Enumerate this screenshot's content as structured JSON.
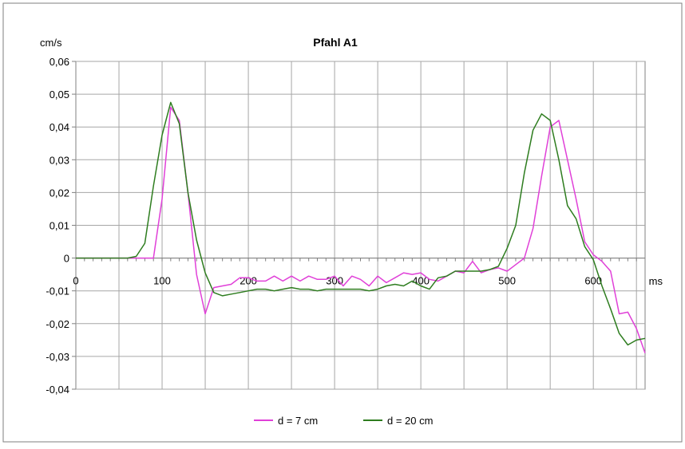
{
  "chart_data": {
    "type": "line",
    "title": "Pfahl A1",
    "ylabel": "cm/s",
    "xlabel": "ms",
    "xlim": [
      0,
      660
    ],
    "ylim": [
      -0.04,
      0.06
    ],
    "x_ticks": [
      0,
      100,
      200,
      300,
      400,
      500,
      600
    ],
    "x_tick_labels": [
      "0",
      "100",
      "200",
      "300",
      "400",
      "500",
      "600"
    ],
    "x_grid_step": 50,
    "y_ticks": [
      -0.04,
      -0.03,
      -0.02,
      -0.01,
      0,
      0.01,
      0.02,
      0.03,
      0.04,
      0.05,
      0.06
    ],
    "y_tick_labels": [
      "-0,04",
      "-0,03",
      "-0,02",
      "-0,01",
      "0",
      "0,01",
      "0,02",
      "0,03",
      "0,04",
      "0,05",
      "0,06"
    ],
    "grid": true,
    "legend_position": "bottom",
    "series": [
      {
        "name": "d = 7 cm",
        "color": "#e040d8",
        "x": [
          0,
          10,
          20,
          30,
          40,
          50,
          60,
          70,
          80,
          90,
          100,
          110,
          120,
          130,
          140,
          150,
          160,
          170,
          180,
          190,
          200,
          210,
          220,
          230,
          240,
          250,
          260,
          270,
          280,
          290,
          300,
          310,
          320,
          330,
          340,
          350,
          360,
          370,
          380,
          390,
          400,
          410,
          420,
          430,
          440,
          450,
          460,
          470,
          480,
          490,
          500,
          510,
          520,
          530,
          540,
          550,
          560,
          570,
          580,
          590,
          600,
          610,
          620,
          630,
          640,
          650,
          660
        ],
        "y": [
          0,
          0,
          0,
          0,
          0,
          0,
          0,
          0,
          0,
          0,
          0.018,
          0.046,
          0.042,
          0.02,
          -0.005,
          -0.017,
          -0.009,
          -0.0085,
          -0.008,
          -0.006,
          -0.006,
          -0.007,
          -0.007,
          -0.0055,
          -0.007,
          -0.0055,
          -0.007,
          -0.0055,
          -0.0065,
          -0.0065,
          -0.0055,
          -0.0085,
          -0.0055,
          -0.0065,
          -0.0085,
          -0.0055,
          -0.0075,
          -0.006,
          -0.0045,
          -0.005,
          -0.0045,
          -0.0065,
          -0.007,
          -0.0055,
          -0.004,
          -0.0045,
          -0.001,
          -0.0045,
          -0.0035,
          -0.003,
          -0.004,
          -0.002,
          0.0,
          0.009,
          0.025,
          0.04,
          0.042,
          0.03,
          0.018,
          0.005,
          0.001,
          -0.001,
          -0.004,
          -0.017,
          -0.0165,
          -0.0215,
          -0.029
        ]
      },
      {
        "name": "d = 20 cm",
        "color": "#2e7d1f",
        "x": [
          0,
          10,
          20,
          30,
          40,
          50,
          60,
          70,
          80,
          90,
          100,
          110,
          120,
          130,
          140,
          150,
          160,
          170,
          180,
          190,
          200,
          210,
          220,
          230,
          240,
          250,
          260,
          270,
          280,
          290,
          300,
          310,
          320,
          330,
          340,
          350,
          360,
          370,
          380,
          390,
          400,
          410,
          420,
          430,
          440,
          450,
          460,
          470,
          480,
          490,
          500,
          510,
          520,
          530,
          540,
          550,
          560,
          570,
          580,
          590,
          600,
          610,
          620,
          630,
          640,
          650,
          660
        ],
        "y": [
          0,
          0,
          0,
          0,
          0,
          0,
          0,
          0.0005,
          0.0045,
          0.022,
          0.0375,
          0.0475,
          0.041,
          0.02,
          0.0055,
          -0.0045,
          -0.0105,
          -0.0115,
          -0.011,
          -0.0105,
          -0.01,
          -0.0095,
          -0.0095,
          -0.01,
          -0.0095,
          -0.009,
          -0.0095,
          -0.0095,
          -0.01,
          -0.0095,
          -0.0095,
          -0.0095,
          -0.0095,
          -0.0095,
          -0.01,
          -0.0095,
          -0.0085,
          -0.008,
          -0.0085,
          -0.007,
          -0.0085,
          -0.0095,
          -0.006,
          -0.0055,
          -0.004,
          -0.004,
          -0.004,
          -0.004,
          -0.0035,
          -0.0025,
          0.003,
          0.01,
          0.026,
          0.039,
          0.044,
          0.042,
          0.03,
          0.016,
          0.012,
          0.0035,
          -0.0005,
          -0.0085,
          -0.0155,
          -0.023,
          -0.0265,
          -0.025,
          -0.0245
        ]
      }
    ]
  }
}
